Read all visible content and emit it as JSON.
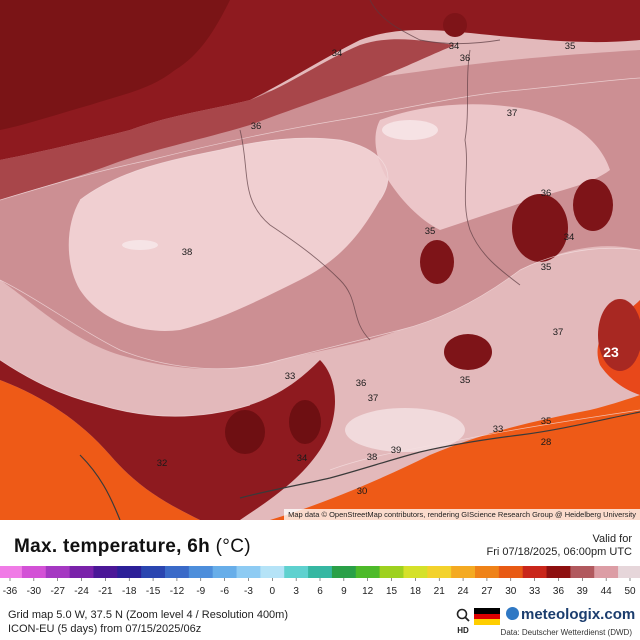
{
  "title": {
    "main": "Max. temperature, 6h",
    "unit": "(°C)"
  },
  "valid": {
    "label": "Valid for",
    "time": "Fri 07/18/2025, 06:00pm UTC"
  },
  "attribution": "Map data © OpenStreetMap contributors, rendering GIScience Research Group @ Heidelberg University",
  "scale": {
    "ticks": [
      "-36",
      "-30",
      "-27",
      "-24",
      "-21",
      "-18",
      "-15",
      "-12",
      "-9",
      "-6",
      "-3",
      "0",
      "3",
      "6",
      "9",
      "12",
      "15",
      "18",
      "21",
      "24",
      "27",
      "30",
      "33",
      "36",
      "39",
      "44",
      "50"
    ],
    "colors": [
      "#f07be6",
      "#d351d6",
      "#a538c2",
      "#7a22aa",
      "#4b1797",
      "#2c1f98",
      "#2a45b0",
      "#3a6ac8",
      "#4d8edb",
      "#68aee9",
      "#8ecbf3",
      "#b5e3f7",
      "#5fd1cf",
      "#36b7a2",
      "#2aa048",
      "#4dba2a",
      "#9ed11f",
      "#d5e12a",
      "#f3d22c",
      "#f4aa22",
      "#ef8218",
      "#e85a14",
      "#c9261a",
      "#8e1010",
      "#b1595e",
      "#dc9da5",
      "#e6d6da"
    ]
  },
  "info": {
    "grid": "Grid map 5.0 W, 37.5 N (Zoom level 4 / Resolution 400m)",
    "model": "ICON-EU (5 days) from 07/15/2025/06z"
  },
  "icons": {
    "hd": "hd-icon",
    "flag": "germany-flag-icon"
  },
  "flag_colors": [
    "#000000",
    "#dd0000",
    "#ffce00"
  ],
  "logo": "meteologix.com",
  "credit": "Data: Deutscher Wetterdienst (DWD)",
  "map": {
    "labels": [
      {
        "t": "34"
      },
      {
        "t": "34"
      },
      {
        "t": "35"
      },
      {
        "t": "36"
      },
      {
        "t": "37"
      },
      {
        "t": "36"
      },
      {
        "t": "38"
      },
      {
        "t": "36"
      },
      {
        "t": "35"
      },
      {
        "t": "34"
      },
      {
        "t": "35"
      },
      {
        "t": "37"
      },
      {
        "t": "23"
      },
      {
        "t": "35"
      },
      {
        "t": "36"
      },
      {
        "t": "37"
      },
      {
        "t": "33"
      },
      {
        "t": "34"
      },
      {
        "t": "38"
      },
      {
        "t": "39"
      },
      {
        "t": "35"
      },
      {
        "t": "28"
      },
      {
        "t": "33"
      },
      {
        "t": "32"
      },
      {
        "t": "30"
      }
    ]
  }
}
